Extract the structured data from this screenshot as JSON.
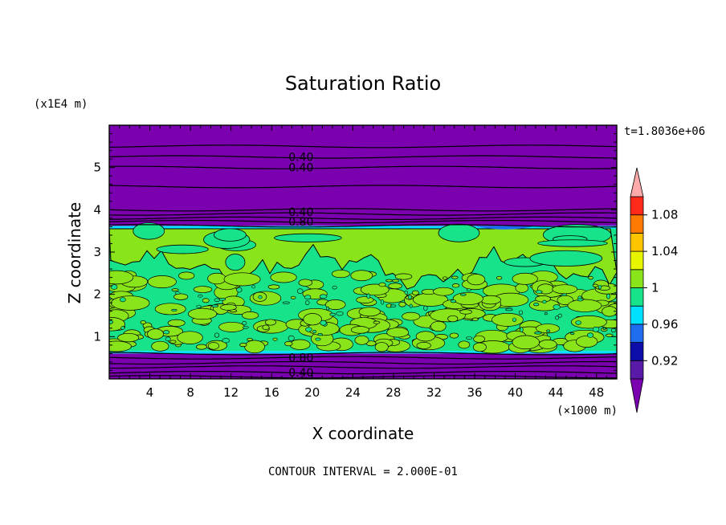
{
  "chart_data": {
    "type": "heatmap",
    "title": "Saturation Ratio",
    "xlabel": "X coordinate",
    "ylabel": "Z coordinate",
    "x_unit": "(×1000 m)",
    "y_unit": "(x1E4 m)",
    "time_label": "t=1.8036e+06",
    "footer": "CONTOUR INTERVAL = 2.000E-01",
    "xlim": [
      0,
      50
    ],
    "ylim": [
      0,
      6
    ],
    "x_ticks": [
      4,
      8,
      12,
      16,
      20,
      24,
      28,
      32,
      36,
      40,
      44,
      48
    ],
    "y_ticks": [
      1,
      2,
      3,
      4,
      5
    ],
    "colorbar": {
      "levels": [
        0.92,
        0.94,
        0.96,
        0.98,
        1.0,
        1.02,
        1.04,
        1.06,
        1.08,
        1.1
      ],
      "tick_labels": [
        "0.92",
        "0.96",
        "1",
        "1.04",
        "1.08"
      ],
      "colors": [
        "#5a1aa8",
        "#0c0ca8",
        "#1e6cf0",
        "#00e0ff",
        "#17e48a",
        "#8ae41a",
        "#e8f500",
        "#ffc400",
        "#ff7a00",
        "#ff2a1a",
        "#ffaaaa"
      ],
      "under_color": "#7a00b0",
      "over_color": "#ffaaaa"
    },
    "bands": [
      {
        "z_from": 0.0,
        "z_to": 0.6,
        "color": "#7a00b0",
        "label": "below 0.92"
      },
      {
        "z_from": 0.6,
        "z_to": 0.66,
        "color": "#00e0ff",
        "label": "0.96-0.98"
      },
      {
        "z_from": 0.66,
        "z_to": 3.55,
        "color": "#17e48a",
        "label": "0.98-1.00 with patches 1.00-1.02"
      },
      {
        "z_from": 3.55,
        "z_to": 3.62,
        "color": "#00e0ff",
        "label": "0.96-0.98"
      },
      {
        "z_from": 3.62,
        "z_to": 6.0,
        "color": "#7a00b0",
        "label": "below 0.92"
      }
    ],
    "contour_labels": [
      {
        "text": "0.40",
        "x": 17.5,
        "z": 5.25
      },
      {
        "text": "0.40",
        "x": 17.5,
        "z": 5.0
      },
      {
        "text": "0.40",
        "x": 17.5,
        "z": 3.95
      },
      {
        "text": "0.80",
        "x": 17.5,
        "z": 3.72
      },
      {
        "text": "0.80",
        "x": 17.5,
        "z": 0.5
      },
      {
        "text": "0.40",
        "x": 17.5,
        "z": 0.15
      }
    ]
  }
}
